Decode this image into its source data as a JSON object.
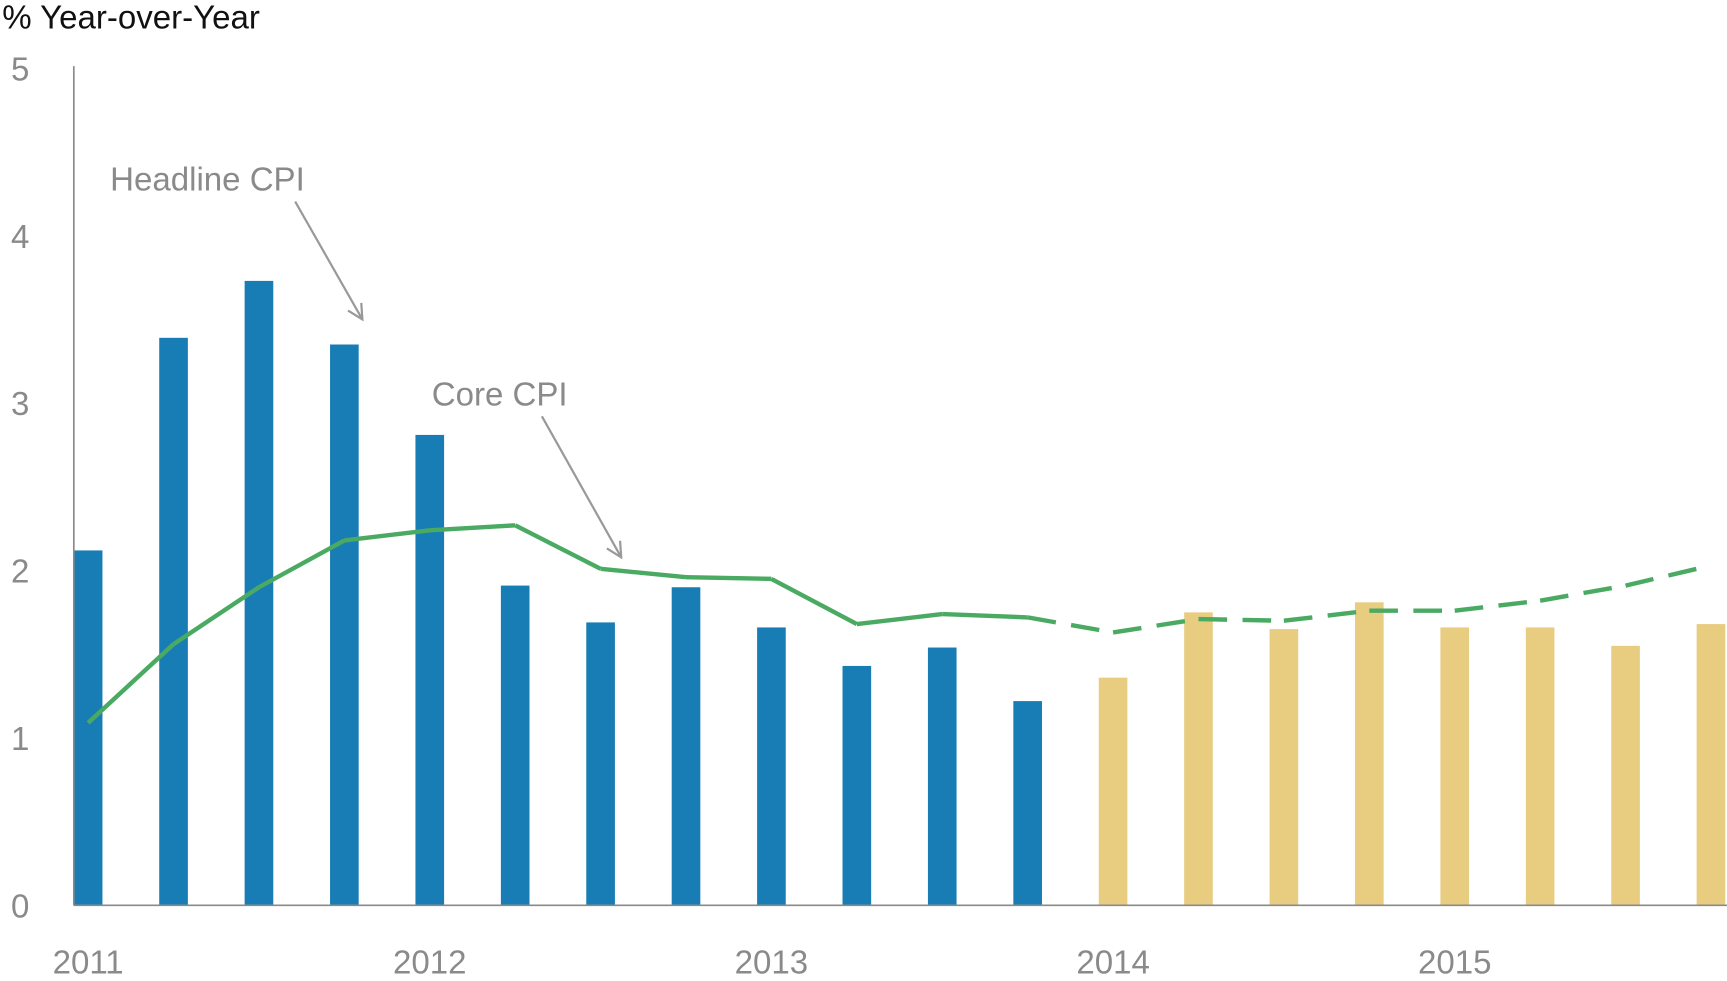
{
  "chart_data": {
    "type": "bar",
    "y_axis_label": "% Year-over-Year",
    "categories": [
      "2011",
      null,
      null,
      null,
      "2012",
      null,
      null,
      null,
      "2013",
      null,
      null,
      null,
      "2014",
      null,
      null,
      null,
      "2015",
      null,
      null,
      null
    ],
    "ylim": [
      0,
      5
    ],
    "yticks": [
      0,
      1,
      2,
      3,
      4,
      5
    ],
    "grid": false,
    "series": [
      {
        "name": "Headline CPI",
        "type": "bar",
        "values": [
          2.12,
          3.39,
          3.73,
          3.35,
          2.81,
          1.91,
          1.69,
          1.9,
          1.66,
          1.43,
          1.54,
          1.22,
          1.36,
          1.75,
          1.65,
          1.81,
          1.66,
          1.66,
          1.55,
          1.68
        ],
        "colors": [
          "#177db4",
          "#177db4",
          "#177db4",
          "#177db4",
          "#177db4",
          "#177db4",
          "#177db4",
          "#177db4",
          "#177db4",
          "#177db4",
          "#177db4",
          "#177db4",
          "#e8cc80",
          "#e8cc80",
          "#e8cc80",
          "#e8cc80",
          "#e8cc80",
          "#e8cc80",
          "#e8cc80",
          "#e8cc80"
        ]
      },
      {
        "name": "Core CPI",
        "type": "line",
        "color": "#4aaa62",
        "values": [
          1.09,
          1.56,
          1.9,
          2.18,
          2.24,
          2.27,
          2.01,
          1.96,
          1.95,
          1.68,
          1.74,
          1.72,
          1.63,
          1.71,
          1.7,
          1.76,
          1.76,
          1.82,
          1.91,
          2.03
        ],
        "dashed": [
          false,
          false,
          false,
          false,
          false,
          false,
          false,
          false,
          false,
          false,
          false,
          false,
          true,
          true,
          true,
          true,
          true,
          true,
          true,
          true
        ]
      }
    ]
  }
}
